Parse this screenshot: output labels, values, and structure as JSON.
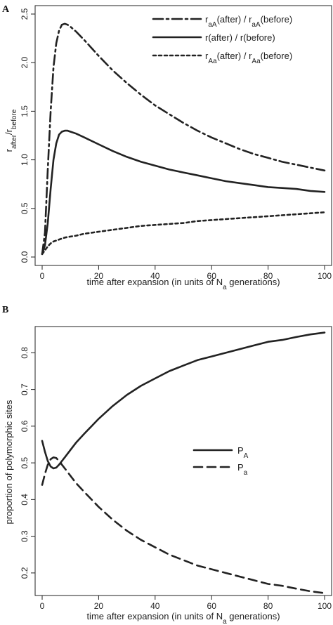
{
  "figure": {
    "panel_a_letter": "A",
    "panel_b_letter": "B"
  },
  "chart_data": [
    {
      "type": "line",
      "panel": "A",
      "xlabel": "time after expansion (in units of N_a generations)",
      "xlabel_parts": [
        "time after expansion (in units of N",
        "a",
        " generations)"
      ],
      "ylabel_parts": [
        "r",
        "after",
        "/r",
        "before"
      ],
      "xlim": [
        0,
        100
      ],
      "ylim": [
        0,
        2.5
      ],
      "xticks": [
        0,
        20,
        40,
        60,
        80,
        100
      ],
      "yticks": [
        0.0,
        0.5,
        1.0,
        1.5,
        2.0,
        2.5
      ],
      "ytick_labels": [
        "0.0",
        "0.5",
        "1.0",
        "1.5",
        "2.0",
        "2.5"
      ],
      "legend_position": "top-right",
      "series": [
        {
          "name": "r_aA(after) / r_aA(before)",
          "legend_parts": [
            "r",
            "aA",
            "(after) / r",
            "aA",
            "(before)"
          ],
          "dash": "dashdot",
          "x": [
            0,
            1,
            2,
            3,
            4,
            5,
            6,
            7,
            8,
            9,
            10,
            12,
            15,
            20,
            25,
            30,
            35,
            40,
            45,
            50,
            55,
            60,
            65,
            70,
            75,
            80,
            85,
            90,
            95,
            100
          ],
          "y": [
            0.03,
            0.25,
            0.9,
            1.5,
            1.95,
            2.2,
            2.33,
            2.39,
            2.4,
            2.39,
            2.37,
            2.32,
            2.23,
            2.07,
            1.92,
            1.79,
            1.67,
            1.56,
            1.47,
            1.38,
            1.3,
            1.23,
            1.17,
            1.11,
            1.06,
            1.02,
            0.98,
            0.95,
            0.92,
            0.89
          ]
        },
        {
          "name": "r(after) / r(before)",
          "legend_parts": [
            "r(after) / r(before)"
          ],
          "dash": "solid",
          "x": [
            0,
            1,
            2,
            3,
            4,
            5,
            6,
            7,
            8,
            9,
            10,
            12,
            15,
            20,
            25,
            30,
            35,
            40,
            45,
            50,
            55,
            60,
            65,
            70,
            75,
            80,
            85,
            90,
            95,
            100
          ],
          "y": [
            0.03,
            0.12,
            0.35,
            0.7,
            1.0,
            1.17,
            1.26,
            1.29,
            1.3,
            1.3,
            1.29,
            1.27,
            1.23,
            1.16,
            1.09,
            1.03,
            0.98,
            0.94,
            0.9,
            0.87,
            0.84,
            0.81,
            0.78,
            0.76,
            0.74,
            0.72,
            0.71,
            0.7,
            0.68,
            0.67
          ]
        },
        {
          "name": "r_Aa(after) / r_Aa(before)",
          "legend_parts": [
            "r",
            "Aa",
            "(after) / r",
            "Aa",
            "(before)"
          ],
          "dash": "dotted",
          "x": [
            0,
            1,
            2,
            3,
            4,
            5,
            6,
            7,
            8,
            10,
            12,
            15,
            20,
            25,
            30,
            35,
            40,
            45,
            50,
            55,
            60,
            65,
            70,
            75,
            80,
            85,
            90,
            95,
            100
          ],
          "y": [
            0.03,
            0.07,
            0.11,
            0.14,
            0.16,
            0.17,
            0.18,
            0.19,
            0.2,
            0.21,
            0.22,
            0.24,
            0.26,
            0.28,
            0.3,
            0.32,
            0.33,
            0.34,
            0.35,
            0.37,
            0.38,
            0.39,
            0.4,
            0.41,
            0.42,
            0.43,
            0.44,
            0.45,
            0.46
          ]
        }
      ]
    },
    {
      "type": "line",
      "panel": "B",
      "xlabel": "time after expansion (in units of N_a generations)",
      "xlabel_parts": [
        "time after expansion (in units of N",
        "a",
        " generations)"
      ],
      "ylabel": "proportion of polymorphic sites",
      "xlim": [
        0,
        100
      ],
      "ylim": [
        0.15,
        0.86
      ],
      "xticks": [
        0,
        20,
        40,
        60,
        80,
        100
      ],
      "yticks": [
        0.2,
        0.3,
        0.4,
        0.5,
        0.6,
        0.7,
        0.8
      ],
      "ytick_labels": [
        "0.2",
        "0.3",
        "0.4",
        "0.5",
        "0.6",
        "0.7",
        "0.8"
      ],
      "legend_position": "center-right",
      "series": [
        {
          "name": "P_A",
          "legend_parts": [
            "P",
            "A"
          ],
          "dash": "solid",
          "x": [
            0,
            1,
            2,
            3,
            4,
            5,
            6,
            7,
            8,
            10,
            12,
            15,
            20,
            25,
            30,
            35,
            40,
            45,
            50,
            55,
            60,
            65,
            70,
            75,
            80,
            85,
            90,
            95,
            100
          ],
          "y": [
            0.56,
            0.53,
            0.505,
            0.49,
            0.485,
            0.487,
            0.495,
            0.505,
            0.515,
            0.535,
            0.555,
            0.58,
            0.62,
            0.655,
            0.685,
            0.71,
            0.73,
            0.75,
            0.765,
            0.78,
            0.79,
            0.8,
            0.81,
            0.82,
            0.83,
            0.835,
            0.843,
            0.85,
            0.855
          ]
        },
        {
          "name": "P_a",
          "legend_parts": [
            "P",
            "a"
          ],
          "dash": "dashed",
          "x": [
            0,
            1,
            2,
            3,
            4,
            5,
            6,
            7,
            8,
            10,
            12,
            15,
            20,
            25,
            30,
            35,
            40,
            45,
            50,
            55,
            60,
            65,
            70,
            75,
            80,
            85,
            90,
            95,
            100
          ],
          "y": [
            0.44,
            0.47,
            0.495,
            0.51,
            0.515,
            0.513,
            0.505,
            0.495,
            0.485,
            0.465,
            0.445,
            0.42,
            0.38,
            0.345,
            0.315,
            0.29,
            0.27,
            0.25,
            0.235,
            0.22,
            0.21,
            0.2,
            0.19,
            0.18,
            0.17,
            0.165,
            0.157,
            0.15,
            0.145
          ]
        }
      ]
    }
  ]
}
